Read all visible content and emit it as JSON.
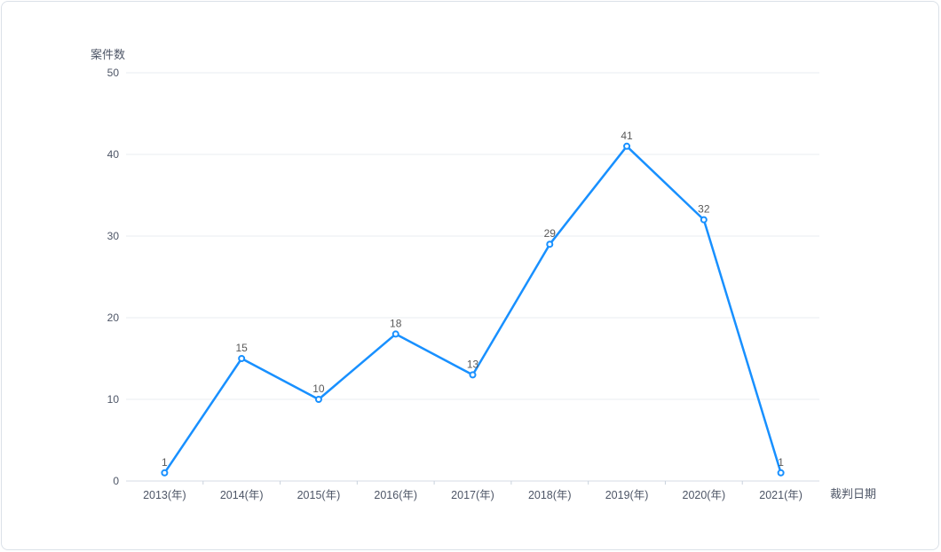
{
  "chart_data": {
    "type": "line",
    "title": "",
    "ylabel": "案件数",
    "xlabel": "裁判日期",
    "categories": [
      "2013(年)",
      "2014(年)",
      "2015(年)",
      "2016(年)",
      "2017(年)",
      "2018(年)",
      "2019(年)",
      "2020(年)",
      "2021(年)"
    ],
    "values": [
      1,
      15,
      10,
      18,
      13,
      29,
      41,
      32,
      1
    ],
    "data_labels": [
      "1",
      "15",
      "10",
      "18",
      "13",
      "29",
      "41",
      "32",
      "1"
    ],
    "y_ticks": [
      0,
      10,
      20,
      30,
      40,
      50
    ],
    "ylim": [
      0,
      50
    ],
    "grid": "horizontal",
    "legend": "none",
    "marker": "circle-open",
    "colors": {
      "line": "#1890ff",
      "marker_fill": "#ffffff",
      "data_label": "#595959",
      "axis_text": "#4d5566",
      "grid_line": "#e8ecf2",
      "axis_line": "#d4dbe4",
      "tick_mark": "#c9d2dd",
      "card_border": "#dbe1e8",
      "card_background": "#ffffff"
    }
  }
}
